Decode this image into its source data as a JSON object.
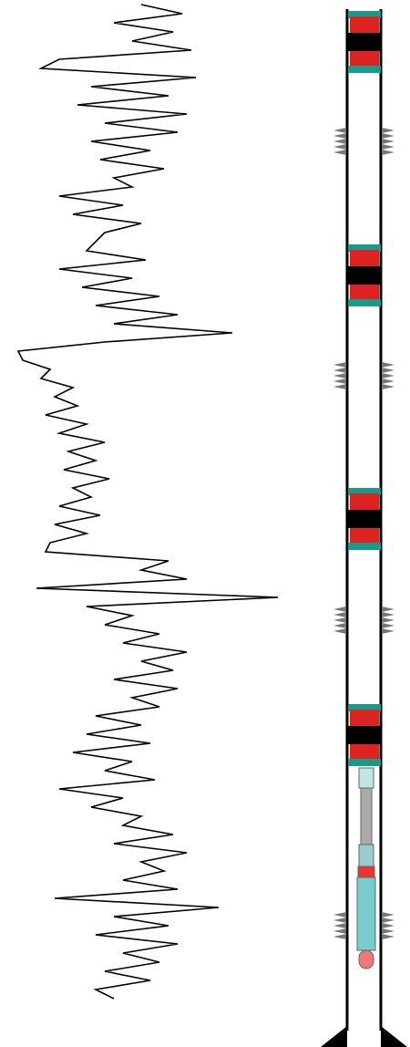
{
  "chart_data": {
    "type": "line",
    "orientation": "vertical",
    "color": "#000000",
    "x": [
      0,
      10,
      20,
      30,
      40,
      50,
      60,
      70,
      80,
      90,
      100,
      110,
      120,
      130,
      140,
      150,
      160,
      170,
      180,
      190,
      200,
      210,
      220,
      230,
      240,
      250,
      260,
      270,
      280,
      290,
      300,
      310,
      320,
      330,
      340,
      350,
      360,
      370,
      380,
      390,
      400,
      410,
      420,
      430,
      440,
      450,
      460,
      470,
      480,
      490,
      500,
      510,
      520,
      530,
      540,
      550,
      560,
      570,
      580,
      590,
      600,
      610,
      620,
      630,
      640,
      650,
      660,
      670,
      680,
      690,
      700,
      710,
      720,
      730,
      740,
      750,
      760,
      770,
      780,
      790,
      800,
      810,
      820,
      830,
      840,
      850,
      860,
      870,
      880,
      890,
      900,
      910,
      920,
      930,
      940,
      950,
      960,
      970,
      980,
      990,
      1000,
      1010,
      1020,
      1030,
      1040,
      1050,
      1060,
      1070,
      1080,
      1090
    ],
    "values": [
      150,
      195,
      120,
      185,
      140,
      205,
      60,
      40,
      210,
      95,
      180,
      80,
      200,
      110,
      190,
      95,
      160,
      105,
      175,
      120,
      140,
      60,
      130,
      75,
      150,
      110,
      100,
      90,
      155,
      60,
      140,
      85,
      170,
      100,
      190,
      120,
      250,
      110,
      15,
      20,
      50,
      40,
      75,
      55,
      80,
      45,
      90,
      60,
      110,
      70,
      100,
      65,
      115,
      75,
      95,
      60,
      105,
      55,
      90,
      50,
      45,
      180,
      150,
      200,
      35,
      300,
      90,
      140,
      110,
      170,
      130,
      200,
      150,
      185,
      120,
      190,
      140,
      170,
      100,
      150,
      90,
      160,
      75,
      140,
      110,
      165,
      60,
      130,
      95,
      150,
      130,
      185,
      120,
      200,
      150,
      175,
      130,
      190,
      55,
      235,
      120,
      180,
      100,
      190,
      130,
      170,
      110,
      160,
      100,
      120
    ],
    "xlim": [
      0,
      1100
    ],
    "ylim": [
      0,
      300
    ]
  }
}
